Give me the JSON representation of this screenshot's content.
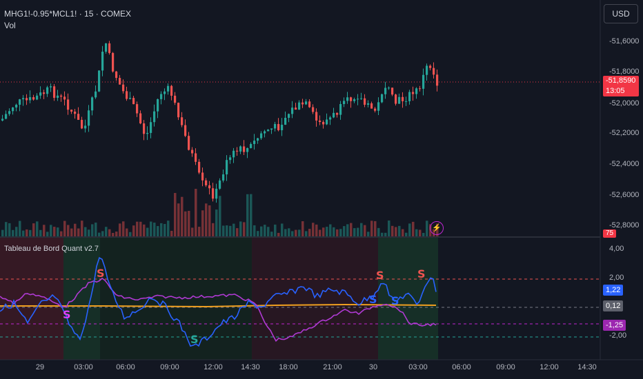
{
  "header": {
    "symbol": "MHG1!-0.95*MCL1! · 15 · COMEX",
    "volume_label": "Vol",
    "currency_button": "USD"
  },
  "price_axis": {
    "labels": [
      "-51,6000",
      "-51,8000",
      "-52,0000",
      "-52,2000",
      "-52,4000",
      "-52,6000",
      "-52,8000"
    ],
    "current_price": "-51,8590",
    "countdown": "13:05",
    "volume_badge": "75"
  },
  "indicator": {
    "title": "Tableau de Bord Quant v2.7",
    "axis_labels": [
      "4,00",
      "2,00",
      "-2,00"
    ],
    "badge_blue": "1,22",
    "badge_gray": "0,12",
    "badge_purple": "-1,25",
    "signals": [
      "S",
      "S",
      "S",
      "S",
      "S",
      "S",
      "S"
    ]
  },
  "time_axis": {
    "labels": [
      "29",
      "03:00",
      "06:00",
      "09:00",
      "12:00",
      "14:30",
      "18:00",
      "21:00",
      "30",
      "03:00",
      "06:00",
      "09:00",
      "12:00",
      "14:30"
    ]
  },
  "colors": {
    "background": "#131722",
    "up": "#26a69a",
    "down": "#ef5350",
    "blue_line": "#2962ff",
    "purple_line": "#b03ad4",
    "orange_line": "#f0a020"
  }
}
